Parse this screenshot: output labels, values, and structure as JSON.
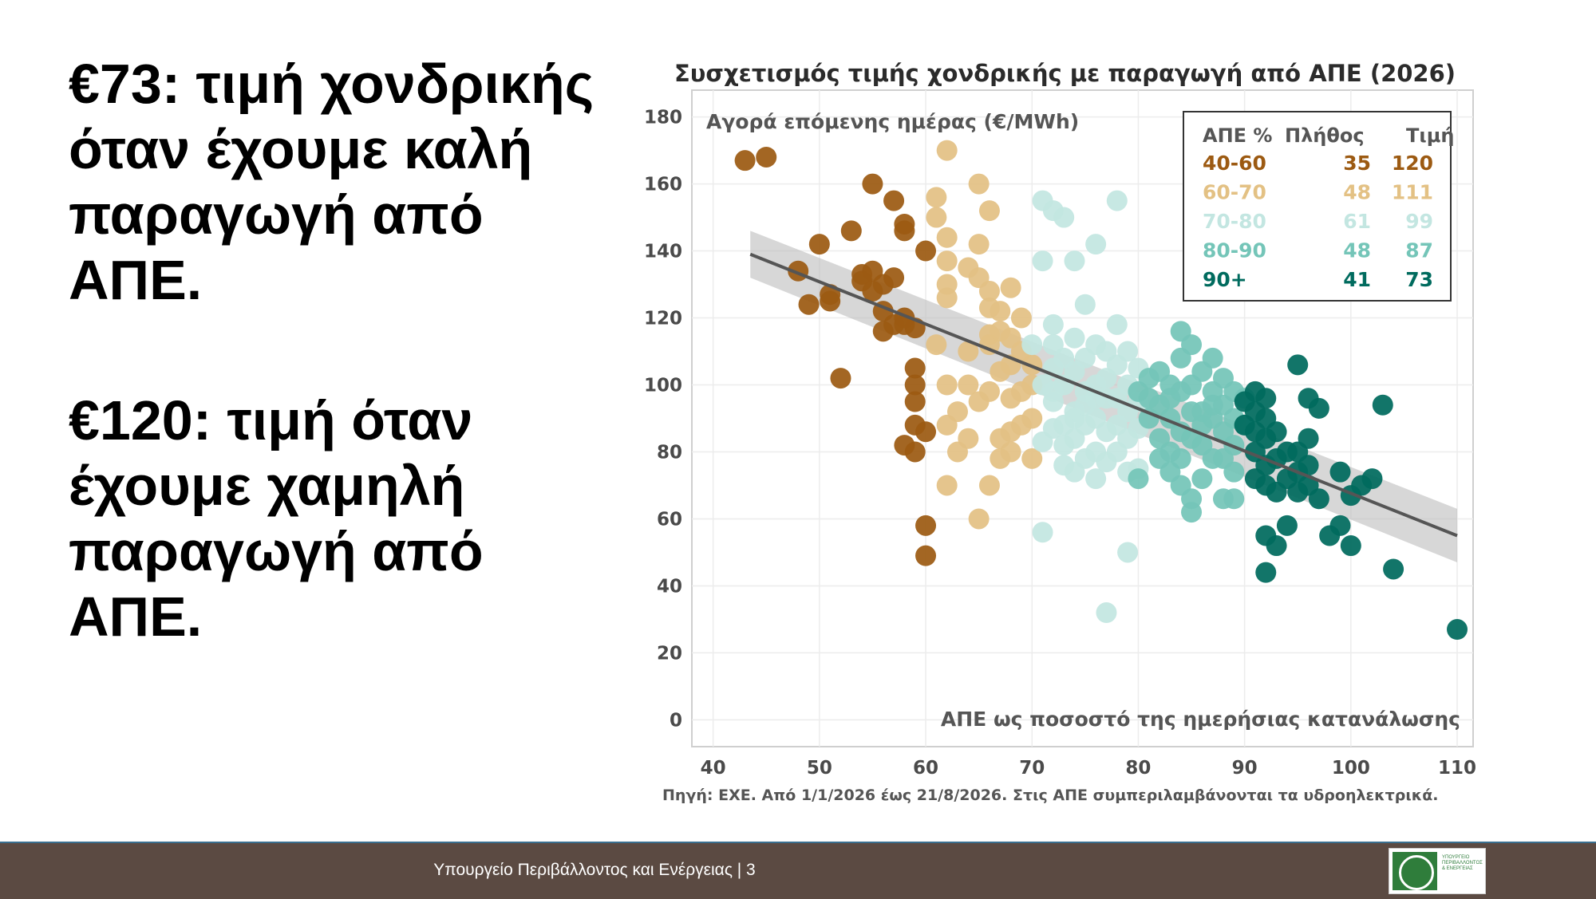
{
  "headline": {
    "low_price": "€73: τιμή χονδρικής όταν έχουμε καλή παραγωγή από ΑΠΕ.",
    "high_price": "€120: τιμή όταν έχουμε χαμηλή παραγωγή από ΑΠΕ."
  },
  "footer": {
    "text": "Υπουργείο Περιβάλλοντος και Ενέργειας | 3",
    "logo_text": "ΥΠΟΥΡΓΕΙΟ ΠΕΡΙΒΑΛΛΟΝΤΟΣ & ΕΝΕΡΓΕΙΑΣ"
  },
  "colors": {
    "g40_60": "#9c5a12",
    "g60_70": "#e3c184",
    "g70_80": "#c3e6e1",
    "g80_90": "#74c5b8",
    "g90": "#006b5e",
    "trend": "#555555",
    "band": "#bdbdbd"
  },
  "chart_data": {
    "type": "scatter",
    "title": "Συσχετισμός τιμής χονδρικής με παραγωγή από ΑΠΕ (2026)",
    "ylabel": "Αγορά επόμενης ημέρας (€/MWh)",
    "xlabel": "ΑΠΕ ως ποσοστό της ημερήσιας κατανάλωσης",
    "source": "Πηγή: ΕΧΕ. Από 1/1/2026 έως 21/8/2026. Στις ΑΠΕ συμπεριλαμβάνονται τα υδροηλεκτρικά.",
    "xlim": [
      38,
      111.5
    ],
    "ylim": [
      -8,
      188
    ],
    "x_ticks": [
      40,
      50,
      60,
      70,
      80,
      90,
      100,
      110
    ],
    "y_ticks": [
      0,
      20,
      40,
      60,
      80,
      100,
      120,
      140,
      160,
      180
    ],
    "grid": true,
    "legend_position": "top-right",
    "legend": {
      "headers": [
        "ΑΠΕ %",
        "Πλήθος",
        "Τιμή"
      ],
      "rows": [
        {
          "range": "40-60",
          "count": "35",
          "price": "120",
          "color_key": "g40_60"
        },
        {
          "range": "60-70",
          "count": "48",
          "price": "111",
          "color_key": "g60_70"
        },
        {
          "range": "70-80",
          "count": "61",
          "price": "99",
          "color_key": "g70_80"
        },
        {
          "range": "80-90",
          "count": "48",
          "price": "87",
          "color_key": "g80_90"
        },
        {
          "range": "90+",
          "count": "41",
          "price": "73",
          "color_key": "g90"
        }
      ]
    },
    "trend": {
      "x": [
        43.5,
        110
      ],
      "y": [
        139,
        55
      ],
      "band_halfwidth": [
        7,
        8
      ]
    },
    "series": [
      {
        "name": "40-60",
        "color_key": "g40_60",
        "points": [
          [
            43,
            167
          ],
          [
            45,
            168
          ],
          [
            48,
            134
          ],
          [
            50,
            142
          ],
          [
            51,
            125
          ],
          [
            51,
            127
          ],
          [
            52,
            102
          ],
          [
            53,
            146
          ],
          [
            54,
            133
          ],
          [
            54,
            131
          ],
          [
            55,
            134
          ],
          [
            55,
            160
          ],
          [
            56,
            130
          ],
          [
            56,
            122
          ],
          [
            56,
            116
          ],
          [
            57,
            155
          ],
          [
            57,
            118
          ],
          [
            58,
            148
          ],
          [
            58,
            146
          ],
          [
            58,
            118
          ],
          [
            58,
            120
          ],
          [
            59,
            117
          ],
          [
            59,
            105
          ],
          [
            59,
            100
          ],
          [
            59,
            95
          ],
          [
            59,
            88
          ],
          [
            59,
            80
          ],
          [
            60,
            140
          ],
          [
            60,
            86
          ],
          [
            60,
            58
          ],
          [
            60,
            49
          ],
          [
            58,
            82
          ],
          [
            57,
            132
          ],
          [
            55,
            128
          ],
          [
            49,
            124
          ]
        ]
      },
      {
        "name": "60-70",
        "color_key": "g60_70",
        "points": [
          [
            61,
            156
          ],
          [
            61,
            150
          ],
          [
            62,
            170
          ],
          [
            62,
            144
          ],
          [
            62,
            137
          ],
          [
            62,
            130
          ],
          [
            62,
            126
          ],
          [
            62,
            100
          ],
          [
            62,
            88
          ],
          [
            63,
            80
          ],
          [
            64,
            135
          ],
          [
            64,
            110
          ],
          [
            64,
            100
          ],
          [
            64,
            84
          ],
          [
            65,
            160
          ],
          [
            65,
            142
          ],
          [
            65,
            132
          ],
          [
            65,
            95
          ],
          [
            65,
            60
          ],
          [
            66,
            152
          ],
          [
            66,
            128
          ],
          [
            66,
            123
          ],
          [
            66,
            115
          ],
          [
            66,
            112
          ],
          [
            66,
            98
          ],
          [
            67,
            122
          ],
          [
            67,
            116
          ],
          [
            67,
            104
          ],
          [
            67,
            84
          ],
          [
            67,
            78
          ],
          [
            68,
            129
          ],
          [
            68,
            114
          ],
          [
            68,
            106
          ],
          [
            68,
            96
          ],
          [
            68,
            86
          ],
          [
            68,
            80
          ],
          [
            69,
            120
          ],
          [
            69,
            110
          ],
          [
            69,
            98
          ],
          [
            69,
            88
          ],
          [
            70,
            106
          ],
          [
            70,
            100
          ],
          [
            70,
            90
          ],
          [
            70,
            78
          ],
          [
            62,
            70
          ],
          [
            61,
            112
          ],
          [
            63,
            92
          ],
          [
            66,
            70
          ]
        ]
      },
      {
        "name": "70-80",
        "color_key": "g70_80",
        "points": [
          [
            71,
            155
          ],
          [
            71,
            137
          ],
          [
            71,
            83
          ],
          [
            71,
            56
          ],
          [
            72,
            152
          ],
          [
            72,
            112
          ],
          [
            72,
            105
          ],
          [
            72,
            95
          ],
          [
            72,
            87
          ],
          [
            73,
            150
          ],
          [
            73,
            100
          ],
          [
            73,
            82
          ],
          [
            73,
            76
          ],
          [
            74,
            137
          ],
          [
            74,
            114
          ],
          [
            74,
            104
          ],
          [
            74,
            92
          ],
          [
            74,
            84
          ],
          [
            75,
            124
          ],
          [
            75,
            108
          ],
          [
            75,
            98
          ],
          [
            75,
            88
          ],
          [
            75,
            78
          ],
          [
            76,
            142
          ],
          [
            76,
            112
          ],
          [
            76,
            100
          ],
          [
            76,
            90
          ],
          [
            76,
            80
          ],
          [
            76,
            72
          ],
          [
            77,
            102
          ],
          [
            77,
            96
          ],
          [
            77,
            86
          ],
          [
            77,
            77
          ],
          [
            77,
            32
          ],
          [
            78,
            155
          ],
          [
            78,
            106
          ],
          [
            78,
            96
          ],
          [
            78,
            88
          ],
          [
            78,
            80
          ],
          [
            79,
            110
          ],
          [
            79,
            100
          ],
          [
            79,
            92
          ],
          [
            79,
            84
          ],
          [
            79,
            50
          ],
          [
            80,
            105
          ],
          [
            80,
            95
          ],
          [
            80,
            87
          ],
          [
            80,
            75
          ],
          [
            72,
            118
          ],
          [
            73,
            108
          ],
          [
            74,
            90
          ],
          [
            75,
            94
          ],
          [
            76,
            96
          ],
          [
            78,
            118
          ],
          [
            79,
            74
          ],
          [
            71,
            100
          ],
          [
            70,
            112
          ],
          [
            73,
            88
          ],
          [
            77,
            110
          ],
          [
            74,
            74
          ],
          [
            72,
            98
          ]
        ]
      },
      {
        "name": "80-90",
        "color_key": "g80_90",
        "points": [
          [
            80,
            98
          ],
          [
            80,
            72
          ],
          [
            81,
            90
          ],
          [
            81,
            96
          ],
          [
            82,
            104
          ],
          [
            82,
            94
          ],
          [
            82,
            84
          ],
          [
            83,
            100
          ],
          [
            83,
            90
          ],
          [
            83,
            80
          ],
          [
            83,
            74
          ],
          [
            84,
            116
          ],
          [
            84,
            108
          ],
          [
            84,
            98
          ],
          [
            84,
            86
          ],
          [
            84,
            78
          ],
          [
            85,
            112
          ],
          [
            85,
            100
          ],
          [
            85,
            92
          ],
          [
            85,
            66
          ],
          [
            85,
            62
          ],
          [
            86,
            104
          ],
          [
            86,
            92
          ],
          [
            86,
            82
          ],
          [
            86,
            72
          ],
          [
            87,
            108
          ],
          [
            87,
            98
          ],
          [
            87,
            90
          ],
          [
            87,
            78
          ],
          [
            88,
            102
          ],
          [
            88,
            94
          ],
          [
            88,
            86
          ],
          [
            88,
            66
          ],
          [
            89,
            98
          ],
          [
            89,
            90
          ],
          [
            89,
            82
          ],
          [
            89,
            66
          ],
          [
            90,
            96
          ],
          [
            90,
            88
          ],
          [
            81,
            102
          ],
          [
            82,
            78
          ],
          [
            83,
            96
          ],
          [
            84,
            70
          ],
          [
            86,
            88
          ],
          [
            87,
            94
          ],
          [
            88,
            78
          ],
          [
            89,
            74
          ],
          [
            85,
            84
          ]
        ]
      },
      {
        "name": "90+",
        "color_key": "g90",
        "points": [
          [
            90,
            95
          ],
          [
            90,
            88
          ],
          [
            91,
            98
          ],
          [
            91,
            92
          ],
          [
            91,
            86
          ],
          [
            91,
            80
          ],
          [
            91,
            72
          ],
          [
            92,
            96
          ],
          [
            92,
            90
          ],
          [
            92,
            84
          ],
          [
            92,
            76
          ],
          [
            92,
            70
          ],
          [
            92,
            55
          ],
          [
            92,
            44
          ],
          [
            93,
            86
          ],
          [
            93,
            78
          ],
          [
            93,
            68
          ],
          [
            93,
            52
          ],
          [
            94,
            80
          ],
          [
            94,
            72
          ],
          [
            94,
            58
          ],
          [
            95,
            106
          ],
          [
            95,
            80
          ],
          [
            95,
            74
          ],
          [
            95,
            68
          ],
          [
            96,
            96
          ],
          [
            96,
            84
          ],
          [
            96,
            76
          ],
          [
            96,
            70
          ],
          [
            97,
            93
          ],
          [
            97,
            66
          ],
          [
            98,
            55
          ],
          [
            99,
            74
          ],
          [
            99,
            58
          ],
          [
            100,
            67
          ],
          [
            100,
            52
          ],
          [
            101,
            70
          ],
          [
            102,
            72
          ],
          [
            103,
            94
          ],
          [
            104,
            45
          ],
          [
            110,
            27
          ]
        ]
      }
    ]
  }
}
